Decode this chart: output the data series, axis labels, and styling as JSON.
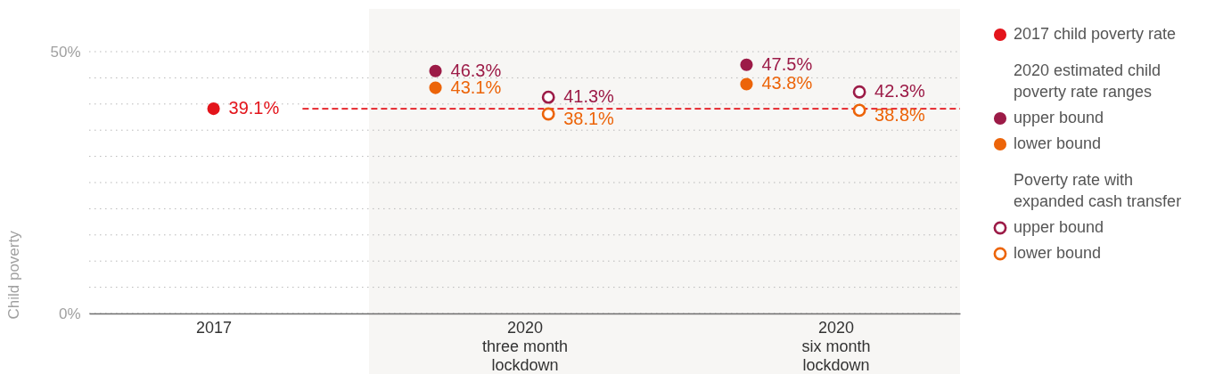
{
  "chart_data": {
    "type": "scatter",
    "categories": [
      "2017",
      "2020\nthree month\nlockdown",
      "2020\nsix month\nlockdown"
    ],
    "ylabel": "Child poverty",
    "ylim": [
      0,
      50
    ],
    "yticks": [
      {
        "value": 0,
        "label": "0%"
      },
      {
        "value": 5,
        "label": null
      },
      {
        "value": 10,
        "label": null
      },
      {
        "value": 15,
        "label": null
      },
      {
        "value": 20,
        "label": null
      },
      {
        "value": 25,
        "label": null
      },
      {
        "value": 30,
        "label": null
      },
      {
        "value": 35,
        "label": null
      },
      {
        "value": 40,
        "label": null
      },
      {
        "value": 45,
        "label": null
      },
      {
        "value": 50,
        "label": "50%"
      }
    ],
    "grid": "y",
    "legend": "right",
    "marker": "circle",
    "series": [
      {
        "name": "2017 child poverty rate",
        "color": "#e3141b",
        "values": [
          39.1,
          null,
          null
        ],
        "value_labels": [
          "39.1%",
          null,
          null
        ]
      },
      {
        "name": "upper bound",
        "color": "#9c1b47",
        "values": [
          null,
          46.3,
          47.5
        ],
        "value_labels": [
          null,
          "46.3%",
          "47.5%"
        ]
      },
      {
        "name": "lower bound",
        "color": "#ec6409",
        "values": [
          null,
          43.1,
          43.8
        ],
        "value_labels": [
          null,
          "43.1%",
          "43.8%"
        ]
      },
      {
        "name": "upper bound",
        "color": "#9c1b47",
        "marker": "circle-open",
        "values": [
          null,
          41.3,
          42.3
        ],
        "value_labels": [
          null,
          "41.3%",
          "42.3%"
        ]
      },
      {
        "name": "lower bound",
        "color": "#ec6409",
        "marker": "circle-open",
        "values": [
          null,
          38.1,
          38.8
        ],
        "value_labels": [
          null,
          "38.1%",
          "38.8%"
        ]
      }
    ],
    "ref_lines": [
      {
        "axis": "y",
        "value": 39.1,
        "color": "#e3141b",
        "line_style": "dashed"
      }
    ],
    "bands": [
      {
        "axis": "x",
        "from": "2020\nthree month\nlockdown",
        "to": "2020\nsix month\nlockdown",
        "color": "#f7f6f4"
      }
    ],
    "annotations": [
      "2020 estimated child poverty rate ranges",
      "Poverty rate with expanded cash transfer"
    ]
  }
}
